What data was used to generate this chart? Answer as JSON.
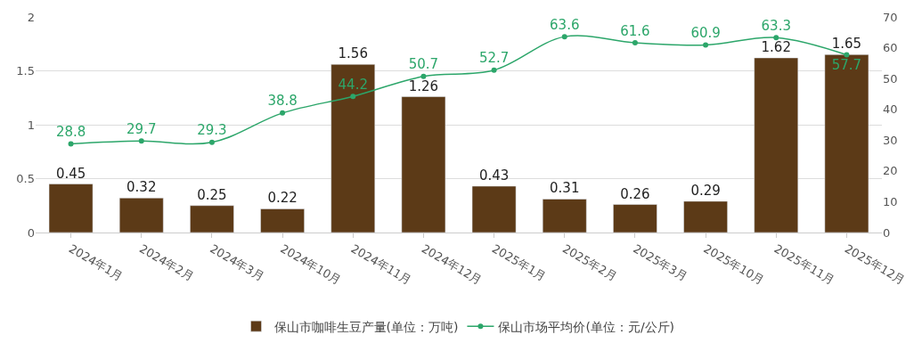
{
  "chart_data": {
    "type": "bar",
    "categories": [
      "2024年1月",
      "2024年2月",
      "2024年3月",
      "2024年10月",
      "2024年11月",
      "2024年12月",
      "2025年1月",
      "2025年2月",
      "2025年3月",
      "2025年10月",
      "2025年11月",
      "2025年12月"
    ],
    "series": [
      {
        "name": "保山市咖啡生豆产量(单位：万吨)",
        "color": "#5c3a17",
        "values": [
          0.45,
          0.32,
          0.25,
          0.22,
          1.56,
          1.26,
          0.43,
          0.31,
          0.26,
          0.29,
          1.62,
          1.65
        ]
      },
      {
        "name": "保山市场平均价(单位：元/公斤)",
        "type": "line",
        "axis": "y2",
        "color": "#2ca66a",
        "values": [
          28.8,
          29.7,
          29.3,
          38.8,
          44.2,
          50.7,
          52.7,
          63.6,
          61.6,
          60.9,
          63.3,
          57.7
        ]
      }
    ],
    "ylim": [
      0,
      2
    ],
    "yticks": [
      0,
      0.5,
      1,
      1.5,
      2
    ],
    "y2lim": [
      0,
      70
    ],
    "y2ticks": [
      0,
      10,
      20,
      30,
      40,
      50,
      60,
      70
    ],
    "grid": "y",
    "legend": "bottom",
    "marker": "circle",
    "line_style": "solid",
    "data_labels": true
  }
}
